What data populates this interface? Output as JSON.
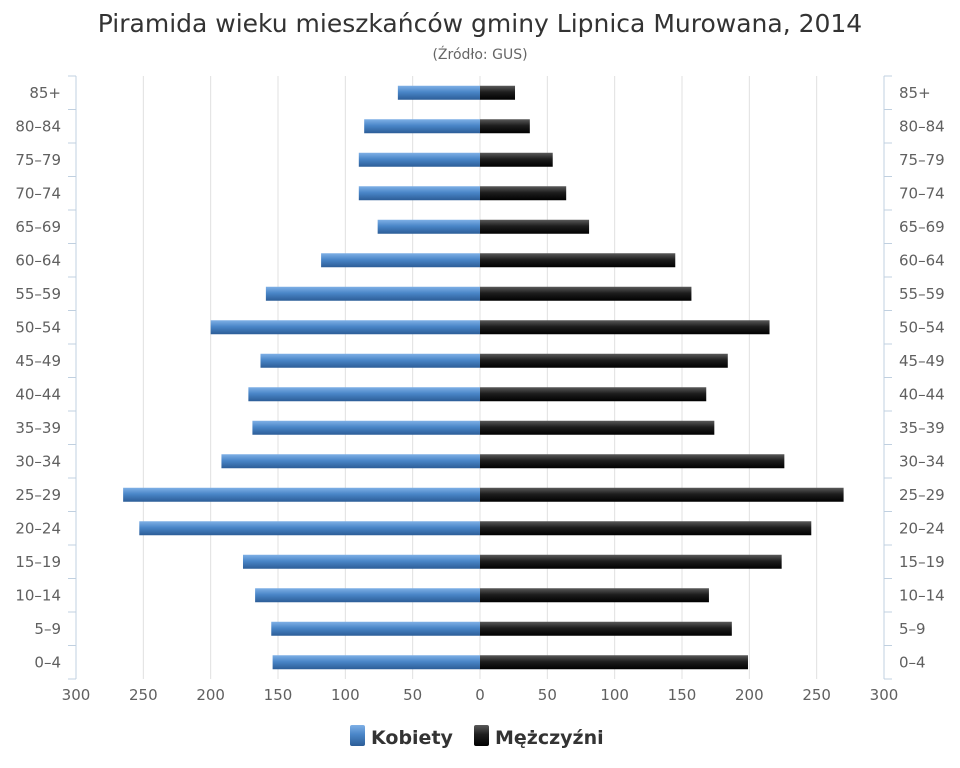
{
  "chart_data": {
    "type": "bar",
    "orientation": "horizontal-pyramid",
    "title": "Piramida wieku mieszkańców gminy Lipnica Murowana, 2014",
    "subtitle": "(Źródło: GUS)",
    "categories": [
      "85+",
      "80–84",
      "75–79",
      "70–74",
      "65–69",
      "60–64",
      "55–59",
      "50–54",
      "45–49",
      "40–44",
      "35–39",
      "30–34",
      "25–29",
      "20–24",
      "15–19",
      "10–14",
      "5–9",
      "0–4"
    ],
    "series": [
      {
        "name": "Kobiety",
        "side": "left",
        "color": "#4a86c8",
        "values": [
          61,
          86,
          90,
          90,
          76,
          118,
          159,
          200,
          163,
          172,
          169,
          192,
          265,
          253,
          176,
          167,
          155,
          154
        ]
      },
      {
        "name": "Mężczyźni",
        "side": "right",
        "color": "#1a1a1a",
        "values": [
          26,
          37,
          54,
          64,
          81,
          145,
          157,
          215,
          184,
          168,
          174,
          226,
          270,
          246,
          224,
          170,
          187,
          199
        ]
      }
    ],
    "xlim": [
      -300,
      300
    ],
    "x_ticks": [
      "300",
      "250",
      "200",
      "150",
      "100",
      "50",
      "0",
      "50",
      "100",
      "150",
      "200",
      "250",
      "300"
    ],
    "grid": true,
    "legend": "bottom-center"
  }
}
